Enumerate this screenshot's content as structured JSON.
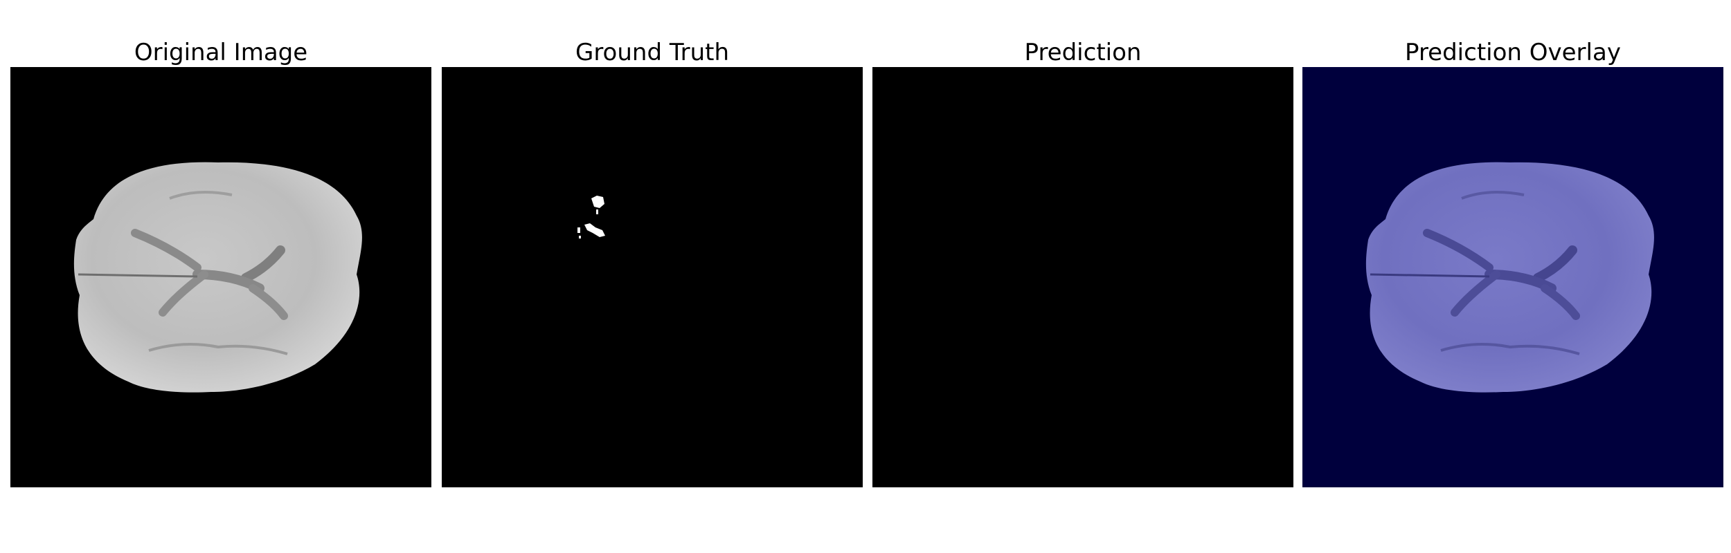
{
  "figure": {
    "panels": [
      {
        "id": "original",
        "title": "Original Image",
        "background": "#000000"
      },
      {
        "id": "ground-truth",
        "title": "Ground Truth",
        "background": "#000000",
        "mask_color": "#ffffff"
      },
      {
        "id": "prediction",
        "title": "Prediction",
        "background": "#000000"
      },
      {
        "id": "overlay",
        "title": "Prediction Overlay",
        "background": "#00003d",
        "tint_color": "#7777cc"
      }
    ]
  }
}
